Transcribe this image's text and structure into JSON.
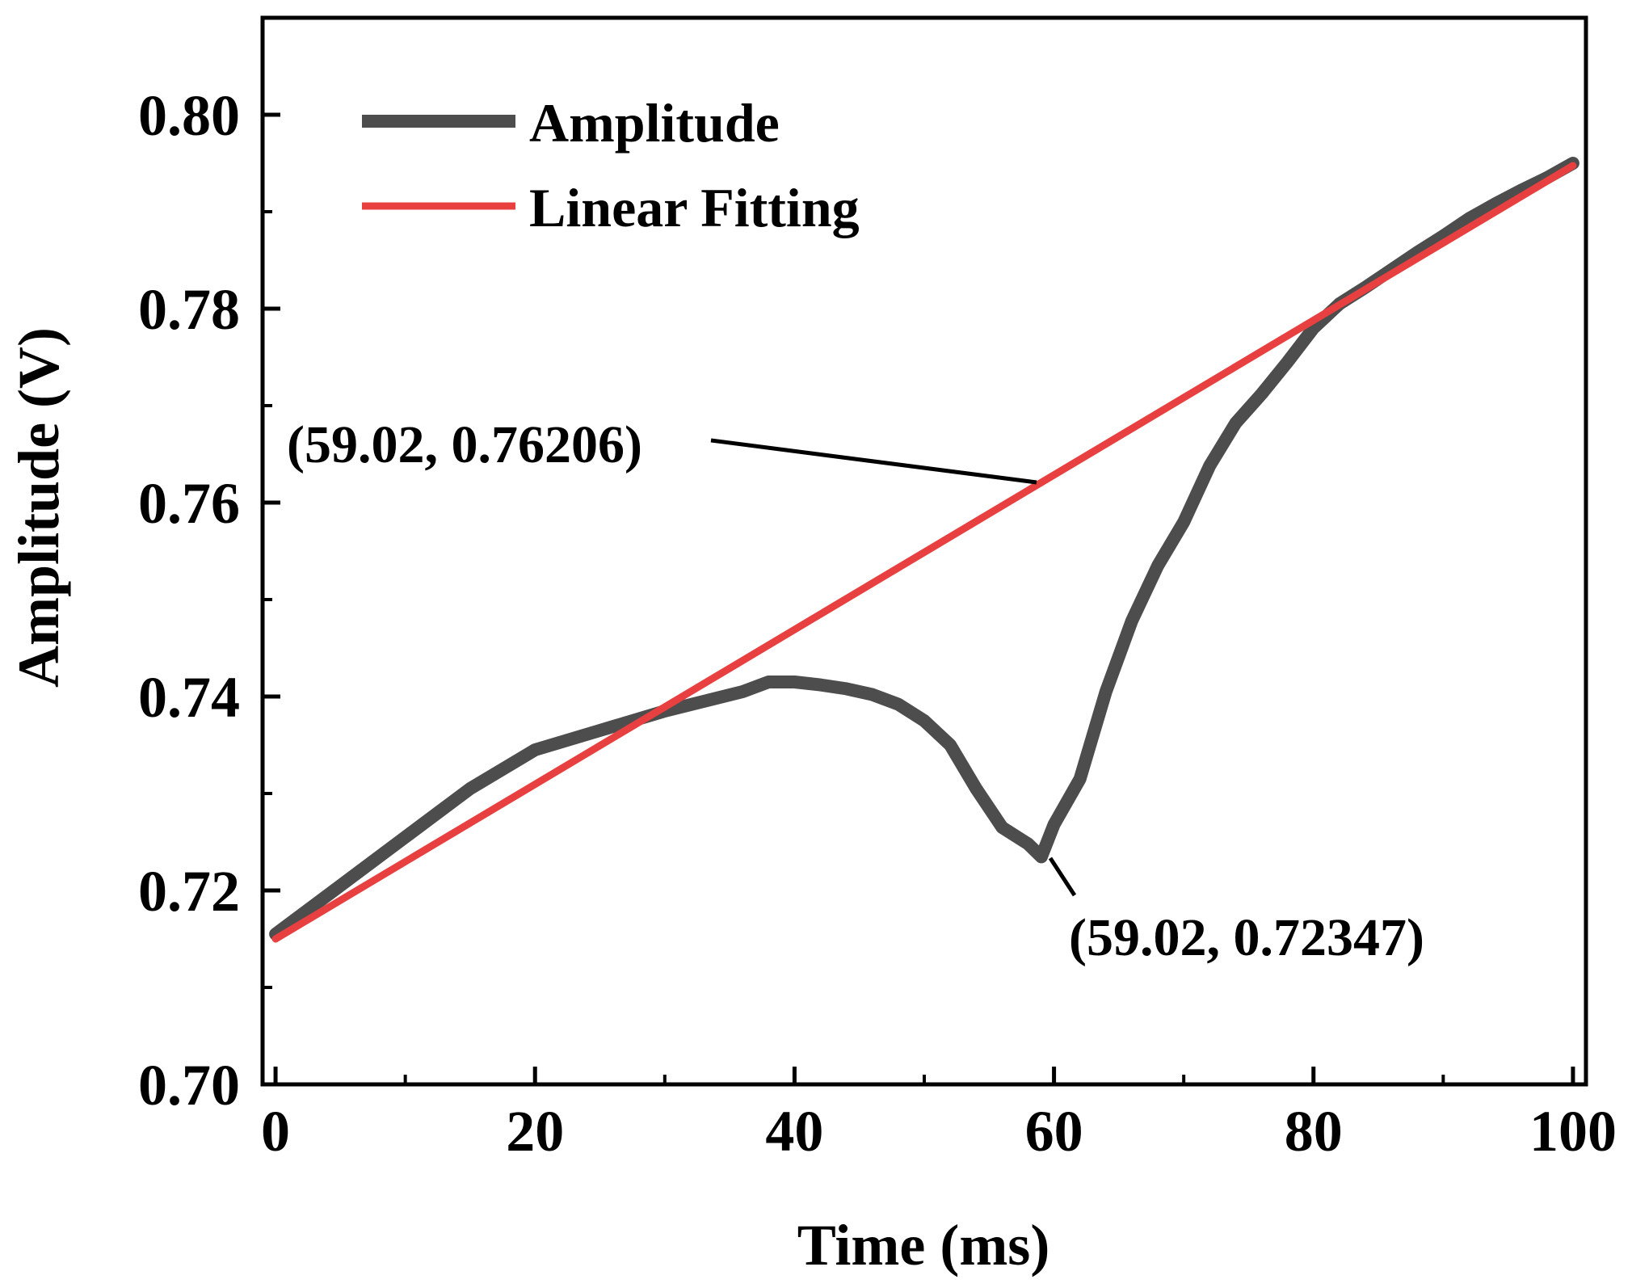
{
  "chart_data": {
    "type": "line",
    "title": "",
    "xlabel": "Time (ms)",
    "ylabel": "Amplitude (V)",
    "xlim": [
      -1,
      101
    ],
    "ylim": [
      0.7,
      0.81
    ],
    "x_ticks": [
      0,
      20,
      40,
      60,
      80,
      100
    ],
    "x_tick_labels": [
      "0",
      "20",
      "40",
      "60",
      "80",
      "100"
    ],
    "y_ticks": [
      0.7,
      0.72,
      0.74,
      0.76,
      0.78,
      0.8
    ],
    "y_tick_labels": [
      "0.70",
      "0.72",
      "0.74",
      "0.76",
      "0.78",
      "0.80"
    ],
    "grid": false,
    "legend_position": "top-left",
    "series": [
      {
        "name": "Amplitude",
        "color": "#4d4d4d",
        "x": [
          0,
          5,
          10,
          15,
          20,
          25,
          30,
          33,
          36,
          38,
          40,
          42,
          44,
          46,
          48,
          50,
          52,
          54,
          56,
          58,
          59.02,
          60,
          62,
          64,
          66,
          68,
          70,
          72,
          74,
          76,
          78,
          80,
          82,
          84,
          86,
          88,
          90,
          92,
          94,
          96,
          98,
          100
        ],
        "y": [
          0.7155,
          0.7205,
          0.7255,
          0.7305,
          0.7345,
          0.7365,
          0.7385,
          0.7395,
          0.7405,
          0.7415,
          0.7415,
          0.7412,
          0.7408,
          0.7402,
          0.7392,
          0.7375,
          0.735,
          0.7305,
          0.7265,
          0.7248,
          0.72347,
          0.7268,
          0.7315,
          0.7405,
          0.7478,
          0.7535,
          0.758,
          0.7638,
          0.7682,
          0.7712,
          0.7745,
          0.778,
          0.7805,
          0.7822,
          0.784,
          0.7858,
          0.7875,
          0.7893,
          0.7908,
          0.7922,
          0.7935,
          0.795
        ]
      },
      {
        "name": "Linear Fitting",
        "color": "#e84040",
        "x": [
          0,
          100
        ],
        "y": [
          0.715,
          0.79475
        ]
      }
    ],
    "annotations": [
      {
        "label": "(59.02, 0.76206)",
        "x": 59.02,
        "y": 0.76206,
        "placement": "upper-left"
      },
      {
        "label": "(59.02, 0.72347)",
        "x": 59.02,
        "y": 0.72347,
        "placement": "lower-right"
      }
    ]
  }
}
